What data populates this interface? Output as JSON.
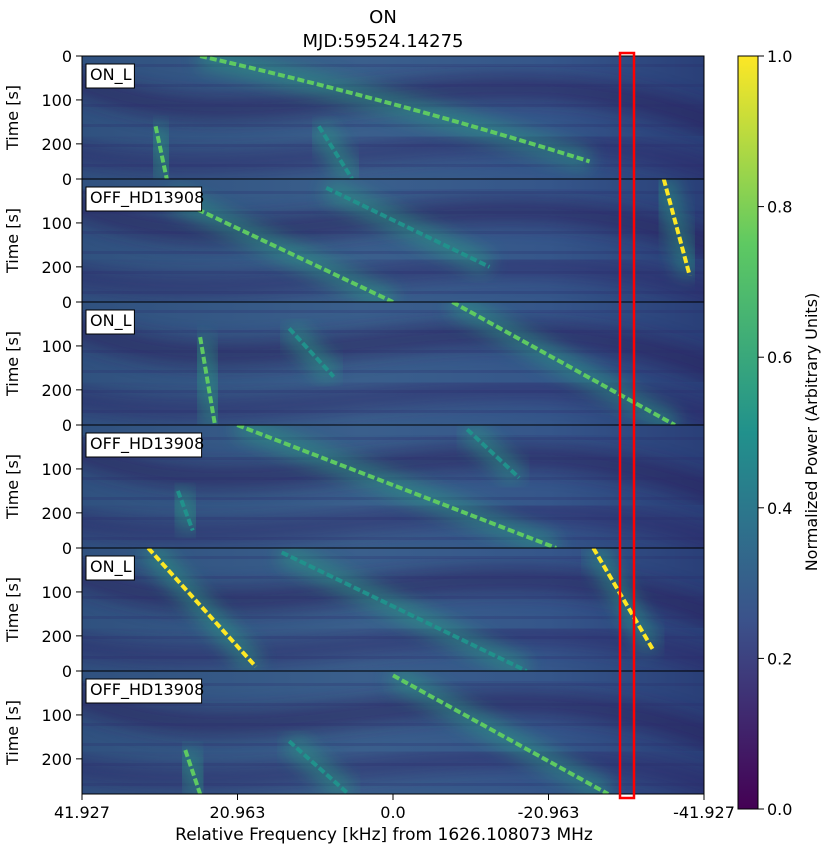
{
  "chart_data": {
    "type": "heatmap",
    "title": "ON",
    "subtitle": "MJD:59524.14275",
    "xlabel": "Relative Frequency [kHz] from 1626.108073 MHz",
    "ylabel": "Time [s]",
    "x_ticks": [
      "41.927",
      "20.963",
      "0.0",
      "-20.963",
      "-41.927"
    ],
    "xlim": [
      41.927,
      -41.927
    ],
    "y_ticks": [
      "0",
      "100",
      "200"
    ],
    "ylim": [
      0,
      280
    ],
    "colorbar": {
      "label": "Normalized Power (Arbitrary Units)",
      "ticks": [
        "0.0",
        "0.2",
        "0.4",
        "0.6",
        "0.8",
        "1.0"
      ],
      "range": [
        0.0,
        1.0
      ],
      "colormap": [
        "#440154",
        "#3b528b",
        "#21918c",
        "#5ec962",
        "#fde725"
      ]
    },
    "highlight": {
      "color": "#ff0000",
      "x_range": [
        -27.5,
        -30.0
      ]
    },
    "panels": [
      {
        "label": "ON_L",
        "tracks": [
          {
            "x": [
              26.0,
              0.0,
              -26.5
            ],
            "t": [
              0,
              100,
              240
            ],
            "intensity": 0.85
          },
          {
            "x": [
              10.0,
              5.5
            ],
            "t": [
              160,
              280
            ],
            "intensity": 0.55
          },
          {
            "x": [
              32.0,
              30.5
            ],
            "t": [
              160,
              280
            ],
            "intensity": 0.7
          }
        ]
      },
      {
        "label": "OFF_HD13908",
        "tracks": [
          {
            "x": [
              -36.5,
              -40.0
            ],
            "t": [
              0,
              220
            ],
            "intensity": 0.95
          },
          {
            "x": [
              30.0,
              0.0
            ],
            "t": [
              40,
              280
            ],
            "intensity": 0.7
          },
          {
            "x": [
              9.0,
              -13.0
            ],
            "t": [
              20,
              200
            ],
            "intensity": 0.55
          }
        ]
      },
      {
        "label": "ON_L",
        "tracks": [
          {
            "x": [
              26.0,
              24.0
            ],
            "t": [
              80,
              280
            ],
            "intensity": 0.85
          },
          {
            "x": [
              -8.0,
              -38.0
            ],
            "t": [
              0,
              280
            ],
            "intensity": 0.8
          },
          {
            "x": [
              14.0,
              8.0
            ],
            "t": [
              60,
              170
            ],
            "intensity": 0.5
          }
        ]
      },
      {
        "label": "OFF_HD13908",
        "tracks": [
          {
            "x": [
              21.0,
              -22.0
            ],
            "t": [
              0,
              280
            ],
            "intensity": 0.85
          },
          {
            "x": [
              -10.0,
              -17.0
            ],
            "t": [
              10,
              120
            ],
            "intensity": 0.55
          },
          {
            "x": [
              29.0,
              27.0
            ],
            "t": [
              150,
              240
            ],
            "intensity": 0.55
          }
        ]
      },
      {
        "label": "ON_L",
        "tracks": [
          {
            "x": [
              33.0,
              18.5
            ],
            "t": [
              0,
              270
            ],
            "intensity": 0.9
          },
          {
            "x": [
              15.0,
              -18.0
            ],
            "t": [
              10,
              280
            ],
            "intensity": 0.6
          },
          {
            "x": [
              -27.0,
              -35.0
            ],
            "t": [
              0,
              230
            ],
            "intensity": 0.9
          }
        ]
      },
      {
        "label": "OFF_HD13908",
        "tracks": [
          {
            "x": [
              0.0,
              -29.0
            ],
            "t": [
              10,
              280
            ],
            "intensity": 0.85
          },
          {
            "x": [
              14.0,
              6.0
            ],
            "t": [
              160,
              280
            ],
            "intensity": 0.55
          },
          {
            "x": [
              28.0,
              26.0
            ],
            "t": [
              180,
              280
            ],
            "intensity": 0.75
          }
        ]
      }
    ]
  }
}
